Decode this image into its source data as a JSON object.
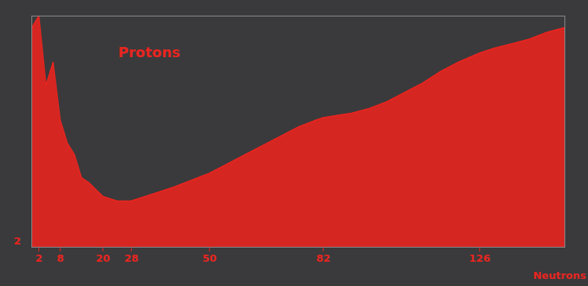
{
  "chart_data": {
    "type": "area",
    "x_label": "Neutrons",
    "annotations": [
      "Protons"
    ],
    "proton_ticks": [
      2
    ],
    "x": [
      0,
      2,
      4,
      6,
      8,
      10,
      12,
      14,
      16,
      18,
      20,
      24,
      28,
      32,
      36,
      40,
      45,
      50,
      55,
      60,
      65,
      70,
      75,
      80,
      82,
      86,
      90,
      95,
      100,
      105,
      110,
      115,
      120,
      126,
      130,
      135,
      140,
      145,
      150
    ],
    "values": [
      95,
      100,
      70,
      80,
      55,
      45,
      40,
      30,
      28,
      25,
      22,
      20,
      20,
      22,
      24,
      26,
      29,
      32,
      36,
      40,
      44,
      48,
      52,
      55,
      56,
      57,
      58,
      60,
      63,
      67,
      71,
      76,
      80,
      84,
      86,
      88,
      90,
      93,
      95
    ],
    "color": "#e8251f",
    "xlim": [
      0,
      150
    ],
    "xticks": [
      2,
      8,
      20,
      28,
      50,
      82,
      126
    ],
    "ylim": [
      0,
      100
    ],
    "tick_labels": "x"
  }
}
